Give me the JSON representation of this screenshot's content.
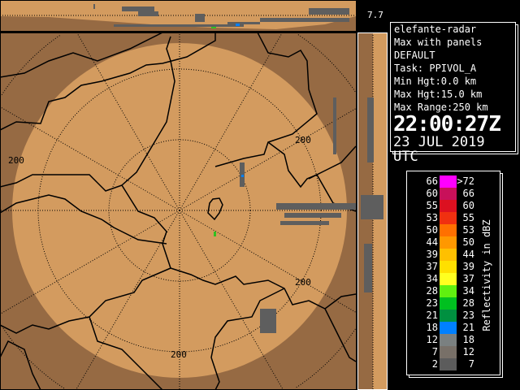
{
  "colors": {
    "inside_range": "#d39b5f",
    "outside_range": "#966a43",
    "background": "#000000"
  },
  "elevation_label": "7.7",
  "info": {
    "radar_name": "elefante-radar",
    "product": "Max with panels",
    "config": "DEFAULT",
    "task": "Task: PPIVOL_A",
    "min_hgt": "Min Hgt:0.0 km",
    "max_hgt": "Max Hgt:15.0 km",
    "max_range": "Max Range:250 km",
    "time": "22:00:27Z",
    "date": "23 JUL 2019 UTC"
  },
  "range_ring_labels": [
    "200",
    "200",
    "200",
    "200"
  ],
  "legend": {
    "units": "Reflectivity in dBZ",
    "bins": [
      {
        "lo": "66",
        "hi": ">72",
        "color": "#ff00ff"
      },
      {
        "lo": "60",
        "hi": "66",
        "color": "#c8105a"
      },
      {
        "lo": "55",
        "hi": "60",
        "color": "#dc1020"
      },
      {
        "lo": "53",
        "hi": "55",
        "color": "#f03010"
      },
      {
        "lo": "50",
        "hi": "53",
        "color": "#ff7000"
      },
      {
        "lo": "44",
        "hi": "50",
        "color": "#ff9800"
      },
      {
        "lo": "39",
        "hi": "44",
        "color": "#ffc000"
      },
      {
        "lo": "37",
        "hi": "39",
        "color": "#ffe000"
      },
      {
        "lo": "34",
        "hi": "37",
        "color": "#ffff20"
      },
      {
        "lo": "28",
        "hi": "34",
        "color": "#60f010"
      },
      {
        "lo": "23",
        "hi": "28",
        "color": "#00c020"
      },
      {
        "lo": "21",
        "hi": "23",
        "color": "#009040"
      },
      {
        "lo": "18",
        "hi": "21",
        "color": "#0080ff"
      },
      {
        "lo": "12",
        "hi": "18",
        "color": "#7a8080"
      },
      {
        "lo": "7",
        "hi": "12",
        "color": "#787068"
      },
      {
        "lo": "2",
        "hi": "7",
        "color": "#5c5c5c"
      }
    ]
  }
}
